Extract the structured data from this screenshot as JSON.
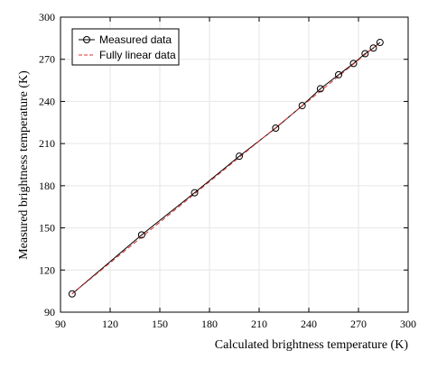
{
  "chart_data": {
    "type": "scatter",
    "xlabel": "Calculated brightness temperature (K)",
    "ylabel": "Measured brightness temperature (K)",
    "xlim": [
      90,
      300
    ],
    "ylim": [
      90,
      300
    ],
    "xticks": [
      90,
      120,
      150,
      180,
      210,
      240,
      270,
      300
    ],
    "yticks": [
      90,
      120,
      150,
      180,
      210,
      240,
      270,
      300
    ],
    "x_tick_labels": [
      "90",
      "120",
      "150",
      "180",
      "210",
      "240",
      "270",
      "300"
    ],
    "y_tick_labels": [
      "90",
      "120",
      "150",
      "180",
      "210",
      "240",
      "270",
      "300"
    ],
    "grid": true,
    "legend_position": "top-left",
    "series": [
      {
        "name": "Measured data",
        "kind": "line-with-open-circle-markers",
        "color": "#000000",
        "x": [
          97,
          139,
          171,
          198,
          220,
          236,
          247,
          258,
          267,
          274,
          279,
          283
        ],
        "y": [
          103,
          145,
          175,
          201,
          221,
          237,
          249,
          259,
          267,
          274,
          278,
          282
        ]
      },
      {
        "name": "Fully linear data",
        "kind": "dashed-line",
        "color": "#e03030",
        "x": [
          97,
          283
        ],
        "y": [
          103,
          282
        ]
      }
    ]
  }
}
